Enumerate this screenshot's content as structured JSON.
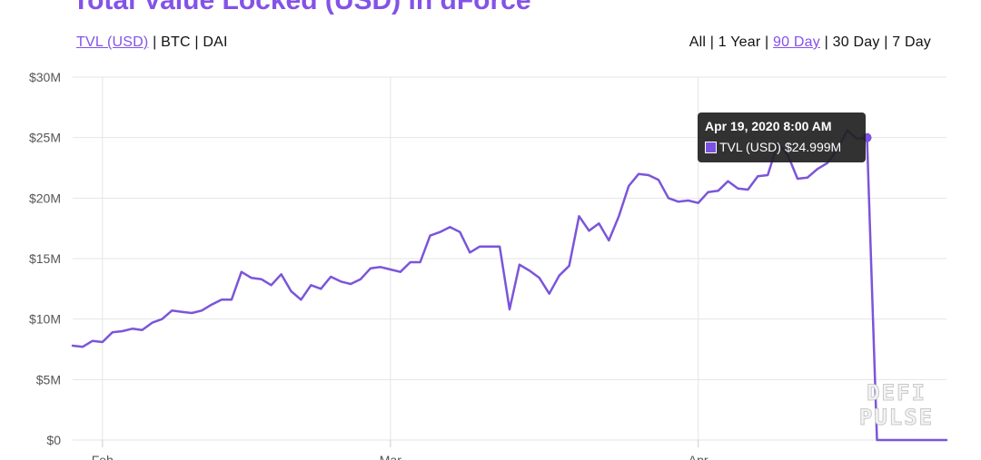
{
  "header": {
    "title": "Total Value Locked (USD) in dForce"
  },
  "currency_toggles": [
    {
      "label": "TVL (USD)",
      "active": true
    },
    {
      "label": "BTC",
      "active": false
    },
    {
      "label": "DAI",
      "active": false
    }
  ],
  "range_toggles": [
    {
      "label": "All",
      "active": false
    },
    {
      "label": "1 Year",
      "active": false
    },
    {
      "label": "90 Day",
      "active": true
    },
    {
      "label": "30 Day",
      "active": false
    },
    {
      "label": "7 Day",
      "active": false
    }
  ],
  "separator": "|",
  "tooltip": {
    "title": "Apr 19, 2020 8:00 AM",
    "series_label": "TVL (USD)",
    "value_text": "$24.999M"
  },
  "watermark": {
    "line1": "DEFI",
    "line2": "PULSE"
  },
  "colors": {
    "accent": "#8452e8",
    "line": "#7b55d9",
    "grid": "#e5e5e5"
  },
  "chart_data": {
    "type": "line",
    "title": "Total Value Locked (USD) in dForce",
    "xlabel": "",
    "ylabel": "",
    "x_ticks": [
      {
        "day": 3,
        "label": "Feb"
      },
      {
        "day": 32,
        "label": "Mar"
      },
      {
        "day": 63,
        "label": "Apr"
      }
    ],
    "y_ticks": [
      "$0",
      "$5M",
      "$10M",
      "$15M",
      "$20M",
      "$25M",
      "$30M"
    ],
    "ylim": [
      0,
      30
    ],
    "y_unit": "$M",
    "xlim": [
      0,
      88
    ],
    "grid": true,
    "highlight": {
      "day": 80,
      "value": 24.999
    },
    "series": [
      {
        "name": "TVL (USD)",
        "points": [
          [
            0,
            7.8
          ],
          [
            1,
            7.7
          ],
          [
            2,
            8.2
          ],
          [
            3,
            8.1
          ],
          [
            4,
            8.9
          ],
          [
            5,
            9.0
          ],
          [
            6,
            9.2
          ],
          [
            7,
            9.1
          ],
          [
            8,
            9.7
          ],
          [
            9,
            10.0
          ],
          [
            10,
            10.7
          ],
          [
            11,
            10.6
          ],
          [
            12,
            10.5
          ],
          [
            13,
            10.7
          ],
          [
            14,
            11.2
          ],
          [
            15,
            11.6
          ],
          [
            16,
            11.6
          ],
          [
            17,
            13.9
          ],
          [
            18,
            13.4
          ],
          [
            19,
            13.3
          ],
          [
            20,
            12.8
          ],
          [
            21,
            13.7
          ],
          [
            22,
            12.3
          ],
          [
            23,
            11.6
          ],
          [
            24,
            12.8
          ],
          [
            25,
            12.5
          ],
          [
            26,
            13.5
          ],
          [
            27,
            13.1
          ],
          [
            28,
            12.9
          ],
          [
            29,
            13.3
          ],
          [
            30,
            14.2
          ],
          [
            31,
            14.3
          ],
          [
            32,
            14.1
          ],
          [
            33,
            13.9
          ],
          [
            34,
            14.7
          ],
          [
            35,
            14.7
          ],
          [
            36,
            16.9
          ],
          [
            37,
            17.2
          ],
          [
            38,
            17.6
          ],
          [
            39,
            17.2
          ],
          [
            40,
            15.5
          ],
          [
            41,
            16.0
          ],
          [
            42,
            16.0
          ],
          [
            43,
            16.0
          ],
          [
            44,
            10.8
          ],
          [
            45,
            14.5
          ],
          [
            46,
            14.0
          ],
          [
            47,
            13.4
          ],
          [
            48,
            12.1
          ],
          [
            49,
            13.6
          ],
          [
            50,
            14.4
          ],
          [
            51,
            18.5
          ],
          [
            52,
            17.3
          ],
          [
            53,
            17.9
          ],
          [
            54,
            16.5
          ],
          [
            55,
            18.5
          ],
          [
            56,
            21.0
          ],
          [
            57,
            22.0
          ],
          [
            58,
            21.9
          ],
          [
            59,
            21.5
          ],
          [
            60,
            20.0
          ],
          [
            61,
            19.7
          ],
          [
            62,
            19.8
          ],
          [
            63,
            19.6
          ],
          [
            64,
            20.5
          ],
          [
            65,
            20.6
          ],
          [
            66,
            21.4
          ],
          [
            67,
            20.8
          ],
          [
            68,
            20.7
          ],
          [
            69,
            21.8
          ],
          [
            70,
            21.9
          ],
          [
            71,
            24.5
          ],
          [
            72,
            23.6
          ],
          [
            73,
            21.6
          ],
          [
            74,
            21.7
          ],
          [
            75,
            22.4
          ],
          [
            76,
            22.9
          ],
          [
            77,
            24.0
          ],
          [
            78,
            25.6
          ],
          [
            79,
            24.9
          ],
          [
            80,
            24.999
          ],
          [
            81,
            0
          ],
          [
            82,
            0
          ],
          [
            83,
            0
          ],
          [
            84,
            0
          ],
          [
            85,
            0
          ],
          [
            86,
            0
          ],
          [
            87,
            0
          ],
          [
            88,
            0
          ]
        ]
      }
    ]
  }
}
